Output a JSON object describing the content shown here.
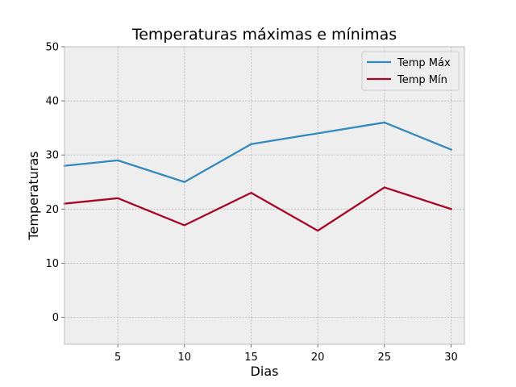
{
  "chart_data": {
    "type": "line",
    "title": "Temperaturas máximas e mínimas",
    "xlabel": "Dias",
    "ylabel": "Temperaturas",
    "x": [
      1,
      5,
      10,
      15,
      20,
      25,
      30
    ],
    "xlim": [
      1,
      31
    ],
    "ylim": [
      -5,
      50
    ],
    "xticks": [
      5,
      10,
      15,
      20,
      25,
      30
    ],
    "yticks": [
      0,
      10,
      20,
      30,
      40,
      50
    ],
    "grid": true,
    "legend_position": "top-right",
    "series": [
      {
        "name": "Temp Máx",
        "color": "#348abd",
        "values": [
          28,
          29,
          25,
          32,
          34,
          36,
          31
        ]
      },
      {
        "name": "Temp Mín",
        "color": "#a60628",
        "values": [
          21,
          22,
          17,
          23,
          16,
          24,
          20
        ]
      }
    ],
    "background_color": "#eeeeee",
    "grid_color": "#b2b2b2",
    "frame_color": "#bcbcbc"
  }
}
